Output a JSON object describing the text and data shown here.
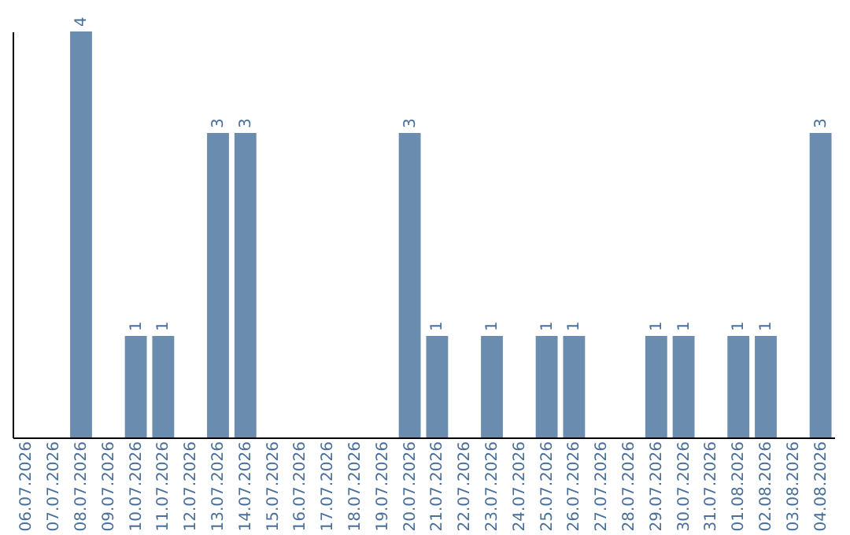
{
  "chart_data": {
    "type": "bar",
    "categories": [
      "06.07.2026",
      "07.07.2026",
      "08.07.2026",
      "09.07.2026",
      "10.07.2026",
      "11.07.2026",
      "12.07.2026",
      "13.07.2026",
      "14.07.2026",
      "15.07.2026",
      "16.07.2026",
      "17.07.2026",
      "18.07.2026",
      "19.07.2026",
      "20.07.2026",
      "21.07.2026",
      "22.07.2026",
      "23.07.2026",
      "24.07.2026",
      "25.07.2026",
      "26.07.2026",
      "27.07.2026",
      "28.07.2026",
      "29.07.2026",
      "30.07.2026",
      "31.07.2026",
      "01.08.2026",
      "02.08.2026",
      "03.08.2026",
      "04.08.2026"
    ],
    "values": [
      0,
      0,
      4,
      0,
      1,
      1,
      0,
      3,
      3,
      0,
      0,
      0,
      0,
      0,
      3,
      1,
      0,
      1,
      0,
      1,
      1,
      0,
      0,
      1,
      1,
      0,
      1,
      1,
      0,
      3
    ],
    "value_labels": [
      null,
      null,
      "4",
      null,
      "1",
      "1",
      null,
      "3",
      "3",
      null,
      null,
      null,
      null,
      null,
      "3",
      "1",
      null,
      "1",
      null,
      "1",
      "1",
      null,
      null,
      "1",
      "1",
      null,
      "1",
      "1",
      null,
      "3"
    ],
    "color": "#6a8caf",
    "ylim": [
      0,
      4
    ]
  }
}
